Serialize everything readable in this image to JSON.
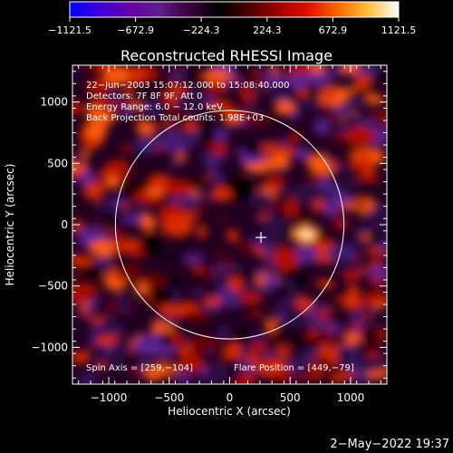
{
  "chart_data": {
    "type": "heatmap",
    "title": "Reconstructed RHESSI Image",
    "xlabel": "Heliocentric X (arcsec)",
    "ylabel": "Heliocentric Y (arcsec)",
    "xlim": [
      -1300,
      1300
    ],
    "ylim": [
      -1300,
      1300
    ],
    "x_ticks": [
      -1000,
      -500,
      0,
      500,
      1000
    ],
    "x_tick_labels": [
      "−1000",
      "−500",
      "0",
      "500",
      "1000"
    ],
    "y_ticks": [
      1000,
      500,
      0,
      -500,
      -1000
    ],
    "y_tick_labels": [
      "1000",
      "500",
      "0",
      "−500",
      "−1000"
    ],
    "colorbar": {
      "min": -1121.5,
      "max": 1121.5,
      "ticks": [
        -1121.5,
        -672.9,
        -224.3,
        224.3,
        672.9,
        1121.5
      ],
      "tick_labels": [
        "−1121.5",
        "−672.9",
        "−224.3",
        "224.3",
        "672.9",
        "1121.5"
      ],
      "colormap": [
        "#0000ff",
        "#3b00d9",
        "#6600a8",
        "#5e1f8a",
        "#3a003a",
        "#000000",
        "#4a0000",
        "#a00000",
        "#e01000",
        "#ff6a00",
        "#ffc040",
        "#ffffff"
      ]
    },
    "annotations": [
      "22−Jun−2003 15:07:12.000 to 15:08:40.000",
      "Detectors: 7F 8F 9F, Att 0",
      "Energy Range: 6.0 − 12.0 keV",
      "Back Projection    Total counts: 1.98E+03"
    ],
    "spin_axis_label": "Spin Axis = [259,−104]",
    "flare_position_label": "Flare Position = [449,−79]",
    "solar_disk": {
      "center": [
        0,
        0
      ],
      "radius_arcsec": 945
    },
    "marker": {
      "symbol": "+",
      "x": 259,
      "y": -104
    },
    "peak_source": {
      "x": 449,
      "y": -79
    },
    "timestamp": "2−May−2022 19:37"
  }
}
